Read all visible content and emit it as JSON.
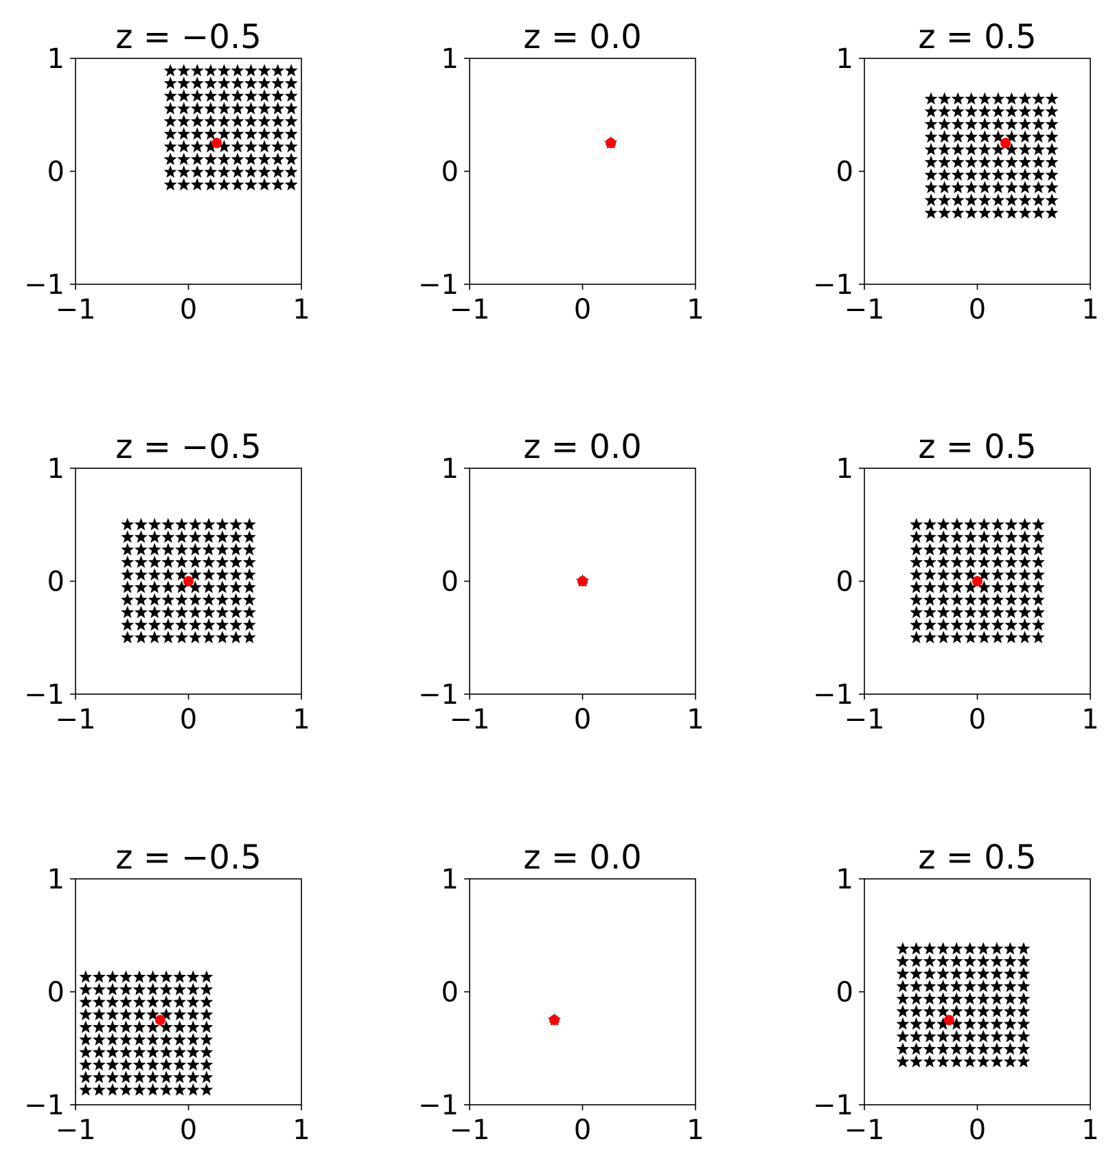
{
  "colors": {
    "grid_marker": "#000000",
    "center_marker": "#ff0000",
    "background": "#ffffff"
  },
  "chart_data": [
    {
      "type": "scatter",
      "title": "z = −0.5",
      "z": -0.5,
      "xlim": [
        -1,
        1
      ],
      "ylim": [
        -1,
        1
      ],
      "x_ticks": [
        "−1",
        "0",
        "1"
      ],
      "y_ticks": [
        "−1",
        "0",
        "1"
      ],
      "grid": false,
      "series": [
        {
          "marker": "star",
          "color": "#000000",
          "grid_x_range": [
            -0.16,
            0.91
          ],
          "grid_y_range": [
            -0.12,
            0.89
          ],
          "n_columns": 10,
          "n_rows": 10
        },
        {
          "marker": "circle",
          "color": "#ff0000",
          "points": [
            [
              0.25,
              0.25
            ]
          ]
        }
      ]
    },
    {
      "type": "scatter",
      "title": "z = 0.0",
      "z": 0.0,
      "xlim": [
        -1,
        1
      ],
      "ylim": [
        -1,
        1
      ],
      "x_ticks": [
        "−1",
        "0",
        "1"
      ],
      "y_ticks": [
        "−1",
        "0",
        "1"
      ],
      "grid": false,
      "series": [
        {
          "marker": "star",
          "color": "#000000",
          "points": [
            [
              0.25,
              0.25
            ]
          ]
        },
        {
          "marker": "circle",
          "color": "#ff0000",
          "points": [
            [
              0.25,
              0.25
            ]
          ]
        }
      ]
    },
    {
      "type": "scatter",
      "title": "z = 0.5",
      "z": 0.5,
      "xlim": [
        -1,
        1
      ],
      "ylim": [
        -1,
        1
      ],
      "x_ticks": [
        "−1",
        "0",
        "1"
      ],
      "y_ticks": [
        "−1",
        "0",
        "1"
      ],
      "grid": false,
      "series": [
        {
          "marker": "star",
          "color": "#000000",
          "grid_x_range": [
            -0.41,
            0.66
          ],
          "grid_y_range": [
            -0.37,
            0.64
          ],
          "n_columns": 10,
          "n_rows": 10
        },
        {
          "marker": "circle",
          "color": "#ff0000",
          "points": [
            [
              0.25,
              0.25
            ]
          ]
        }
      ]
    },
    {
      "type": "scatter",
      "title": "z = −0.5",
      "z": -0.5,
      "xlim": [
        -1,
        1
      ],
      "ylim": [
        -1,
        1
      ],
      "x_ticks": [
        "−1",
        "0",
        "1"
      ],
      "y_ticks": [
        "−1",
        "0",
        "1"
      ],
      "grid": false,
      "series": [
        {
          "marker": "star",
          "color": "#000000",
          "grid_x_range": [
            -0.54,
            0.54
          ],
          "grid_y_range": [
            -0.5,
            0.5
          ],
          "n_columns": 10,
          "n_rows": 10
        },
        {
          "marker": "circle",
          "color": "#ff0000",
          "points": [
            [
              0.0,
              0.0
            ]
          ]
        }
      ]
    },
    {
      "type": "scatter",
      "title": "z = 0.0",
      "z": 0.0,
      "xlim": [
        -1,
        1
      ],
      "ylim": [
        -1,
        1
      ],
      "x_ticks": [
        "−1",
        "0",
        "1"
      ],
      "y_ticks": [
        "−1",
        "0",
        "1"
      ],
      "grid": false,
      "series": [
        {
          "marker": "star",
          "color": "#000000",
          "points": [
            [
              0.0,
              0.0
            ]
          ]
        },
        {
          "marker": "circle",
          "color": "#ff0000",
          "points": [
            [
              0.0,
              0.0
            ]
          ]
        }
      ]
    },
    {
      "type": "scatter",
      "title": "z = 0.5",
      "z": 0.5,
      "xlim": [
        -1,
        1
      ],
      "ylim": [
        -1,
        1
      ],
      "x_ticks": [
        "−1",
        "0",
        "1"
      ],
      "y_ticks": [
        "−1",
        "0",
        "1"
      ],
      "grid": false,
      "series": [
        {
          "marker": "star",
          "color": "#000000",
          "grid_x_range": [
            -0.54,
            0.54
          ],
          "grid_y_range": [
            -0.5,
            0.5
          ],
          "n_columns": 10,
          "n_rows": 10
        },
        {
          "marker": "circle",
          "color": "#ff0000",
          "points": [
            [
              0.0,
              0.0
            ]
          ]
        }
      ]
    },
    {
      "type": "scatter",
      "title": "z = −0.5",
      "z": -0.5,
      "xlim": [
        -1,
        1
      ],
      "ylim": [
        -1,
        1
      ],
      "x_ticks": [
        "−1",
        "0",
        "1"
      ],
      "y_ticks": [
        "−1",
        "0",
        "1"
      ],
      "grid": false,
      "series": [
        {
          "marker": "star",
          "color": "#000000",
          "grid_x_range": [
            -0.91,
            0.16
          ],
          "grid_y_range": [
            -0.87,
            0.13
          ],
          "n_columns": 10,
          "n_rows": 10
        },
        {
          "marker": "circle",
          "color": "#ff0000",
          "points": [
            [
              -0.25,
              -0.25
            ]
          ]
        }
      ]
    },
    {
      "type": "scatter",
      "title": "z = 0.0",
      "z": 0.0,
      "xlim": [
        -1,
        1
      ],
      "ylim": [
        -1,
        1
      ],
      "x_ticks": [
        "−1",
        "0",
        "1"
      ],
      "y_ticks": [
        "−1",
        "0",
        "1"
      ],
      "grid": false,
      "series": [
        {
          "marker": "star",
          "color": "#000000",
          "points": [
            [
              -0.25,
              -0.25
            ]
          ]
        },
        {
          "marker": "circle",
          "color": "#ff0000",
          "points": [
            [
              -0.25,
              -0.25
            ]
          ]
        }
      ]
    },
    {
      "type": "scatter",
      "title": "z = 0.5",
      "z": 0.5,
      "xlim": [
        -1,
        1
      ],
      "ylim": [
        -1,
        1
      ],
      "x_ticks": [
        "−1",
        "0",
        "1"
      ],
      "y_ticks": [
        "−1",
        "0",
        "1"
      ],
      "grid": false,
      "series": [
        {
          "marker": "star",
          "color": "#000000",
          "grid_x_range": [
            -0.66,
            0.41
          ],
          "grid_y_range": [
            -0.62,
            0.38
          ],
          "n_columns": 10,
          "n_rows": 10
        },
        {
          "marker": "circle",
          "color": "#ff0000",
          "points": [
            [
              -0.25,
              -0.25
            ]
          ]
        }
      ]
    }
  ]
}
